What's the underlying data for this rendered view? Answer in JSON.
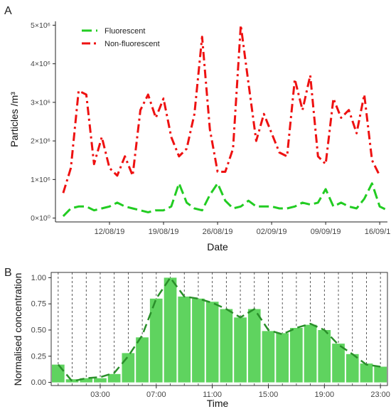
{
  "chart_data": [
    {
      "type": "line",
      "panel_label": "A",
      "xlabel": "Date",
      "ylabel": "Particles /m³",
      "x_tick_labels": [
        "12/08/19",
        "19/08/19",
        "26/08/19",
        "02/09/19",
        "09/09/19",
        "16/09/19"
      ],
      "x_tick_dates": [
        "2019-08-12",
        "2019-08-19",
        "2019-08-26",
        "2019-09-02",
        "2019-09-09",
        "2019-09-16"
      ],
      "xlim": [
        "2019-08-05",
        "2019-09-17"
      ],
      "y_tick_labels": [
        "0×10⁰",
        "1×10⁶",
        "2×10⁶",
        "3×10⁶",
        "4×10⁶",
        "5×10⁶"
      ],
      "y_tick_values": [
        0,
        1000000,
        2000000,
        3000000,
        4000000,
        5000000
      ],
      "ylim": [
        -100000,
        5100000
      ],
      "grid": false,
      "legend_position": "top-left",
      "series": [
        {
          "name": "Fluorescent",
          "color": "#22cc22",
          "dash": "long-dash",
          "points": [
            [
              "2019-08-06",
              50000
            ],
            [
              "2019-08-07",
              250000
            ],
            [
              "2019-08-08",
              300000
            ],
            [
              "2019-08-09",
              300000
            ],
            [
              "2019-08-10",
              200000
            ],
            [
              "2019-08-11",
              250000
            ],
            [
              "2019-08-12",
              300000
            ],
            [
              "2019-08-13",
              400000
            ],
            [
              "2019-08-14",
              300000
            ],
            [
              "2019-08-15",
              250000
            ],
            [
              "2019-08-16",
              200000
            ],
            [
              "2019-08-17",
              150000
            ],
            [
              "2019-08-18",
              200000
            ],
            [
              "2019-08-19",
              200000
            ],
            [
              "2019-08-20",
              300000
            ],
            [
              "2019-08-21",
              900000
            ],
            [
              "2019-08-22",
              400000
            ],
            [
              "2019-08-23",
              250000
            ],
            [
              "2019-08-24",
              200000
            ],
            [
              "2019-08-25",
              600000
            ],
            [
              "2019-08-26",
              900000
            ],
            [
              "2019-08-27",
              450000
            ],
            [
              "2019-08-28",
              250000
            ],
            [
              "2019-08-29",
              300000
            ],
            [
              "2019-08-30",
              450000
            ],
            [
              "2019-08-31",
              300000
            ],
            [
              "2019-09-01",
              300000
            ],
            [
              "2019-09-02",
              300000
            ],
            [
              "2019-09-03",
              250000
            ],
            [
              "2019-09-04",
              250000
            ],
            [
              "2019-09-05",
              300000
            ],
            [
              "2019-09-06",
              400000
            ],
            [
              "2019-09-07",
              350000
            ],
            [
              "2019-09-08",
              400000
            ],
            [
              "2019-09-09",
              750000
            ],
            [
              "2019-09-10",
              300000
            ],
            [
              "2019-09-11",
              400000
            ],
            [
              "2019-09-12",
              300000
            ],
            [
              "2019-09-13",
              250000
            ],
            [
              "2019-09-14",
              500000
            ],
            [
              "2019-09-15",
              900000
            ],
            [
              "2019-09-16",
              300000
            ],
            [
              "2019-09-17",
              200000
            ]
          ]
        },
        {
          "name": "Non-fluorescent",
          "color": "#ee1111",
          "dash": "dash-dot",
          "points": [
            [
              "2019-08-06",
              650000
            ],
            [
              "2019-08-07",
              1300000
            ],
            [
              "2019-08-08",
              3300000
            ],
            [
              "2019-08-09",
              3200000
            ],
            [
              "2019-08-10",
              1400000
            ],
            [
              "2019-08-11",
              2100000
            ],
            [
              "2019-08-12",
              1300000
            ],
            [
              "2019-08-13",
              1100000
            ],
            [
              "2019-08-14",
              1600000
            ],
            [
              "2019-08-15",
              1100000
            ],
            [
              "2019-08-16",
              2800000
            ],
            [
              "2019-08-17",
              3200000
            ],
            [
              "2019-08-18",
              2600000
            ],
            [
              "2019-08-19",
              3100000
            ],
            [
              "2019-08-20",
              2100000
            ],
            [
              "2019-08-21",
              1600000
            ],
            [
              "2019-08-22",
              1800000
            ],
            [
              "2019-08-23",
              2700000
            ],
            [
              "2019-08-24",
              4700000
            ],
            [
              "2019-08-25",
              2300000
            ],
            [
              "2019-08-26",
              1200000
            ],
            [
              "2019-08-27",
              1200000
            ],
            [
              "2019-08-28",
              1800000
            ],
            [
              "2019-08-29",
              5000000
            ],
            [
              "2019-08-30",
              3500000
            ],
            [
              "2019-08-31",
              2000000
            ],
            [
              "2019-09-01",
              2700000
            ],
            [
              "2019-09-02",
              2200000
            ],
            [
              "2019-09-03",
              1700000
            ],
            [
              "2019-09-04",
              1600000
            ],
            [
              "2019-09-05",
              3600000
            ],
            [
              "2019-09-06",
              2800000
            ],
            [
              "2019-09-07",
              3700000
            ],
            [
              "2019-09-08",
              1600000
            ],
            [
              "2019-09-09",
              1400000
            ],
            [
              "2019-09-10",
              3100000
            ],
            [
              "2019-09-11",
              2600000
            ],
            [
              "2019-09-12",
              2800000
            ],
            [
              "2019-09-13",
              2200000
            ],
            [
              "2019-09-14",
              3200000
            ],
            [
              "2019-09-15",
              1500000
            ],
            [
              "2019-09-16",
              1100000
            ]
          ]
        }
      ]
    },
    {
      "type": "bar",
      "panel_label": "B",
      "xlabel": "Time",
      "ylabel": "Normalised concentration",
      "hours": [
        0,
        1,
        2,
        3,
        4,
        5,
        6,
        7,
        8,
        9,
        10,
        11,
        12,
        13,
        14,
        15,
        16,
        17,
        18,
        19,
        20,
        21,
        22,
        23
      ],
      "values": [
        0.17,
        0.03,
        0.04,
        0.04,
        0.08,
        0.28,
        0.43,
        0.8,
        1.0,
        0.82,
        0.8,
        0.77,
        0.7,
        0.62,
        0.7,
        0.49,
        0.47,
        0.52,
        0.55,
        0.5,
        0.37,
        0.27,
        0.18,
        0.15
      ],
      "trend_values": [
        0.17,
        0.01,
        0.04,
        0.05,
        0.09,
        0.25,
        0.45,
        0.8,
        1.0,
        0.82,
        0.8,
        0.76,
        0.7,
        0.62,
        0.7,
        0.5,
        0.46,
        0.52,
        0.56,
        0.5,
        0.36,
        0.27,
        0.17,
        0.15
      ],
      "x_tick_labels": [
        "03:00",
        "07:00",
        "11:00",
        "15:00",
        "19:00",
        "23:00"
      ],
      "x_tick_hours": [
        3,
        7,
        11,
        15,
        19,
        23
      ],
      "y_tick_labels": [
        "0.00",
        "0.25",
        "0.50",
        "0.75",
        "1.00"
      ],
      "y_tick_values": [
        0,
        0.25,
        0.5,
        0.75,
        1.0
      ],
      "ylim": [
        -0.03,
        1.05
      ],
      "xlim": [
        -0.5,
        23.5
      ],
      "bar_color": "#5fd35f",
      "line_color": "#2a8f2a",
      "vline_color": "#333333"
    }
  ]
}
